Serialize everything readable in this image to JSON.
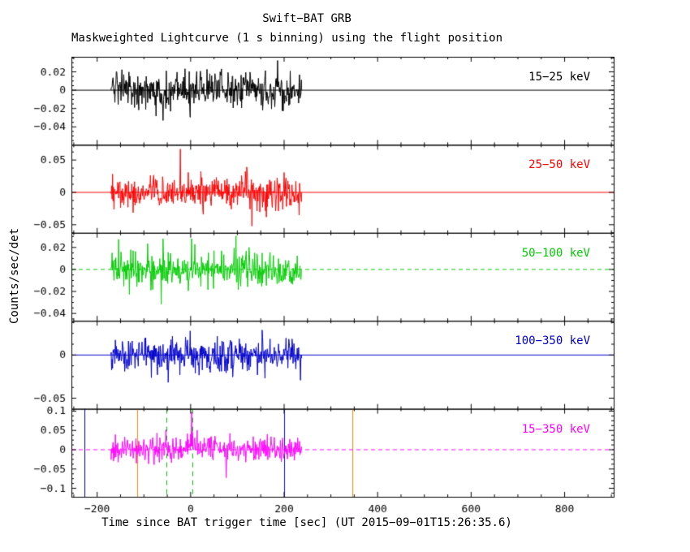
{
  "title": "Swift−BAT GRB",
  "subtitle": "Maskweighted Lightcurve (1 s binning) using the flight position",
  "xlabel": "Time since BAT trigger time [sec] (UT 2015−09−01T15:26:35.6)",
  "ylabel": "Counts/sec/det",
  "chart_data": {
    "type": "line",
    "title": "Swift−BAT GRB",
    "subtitle": "Maskweighted Lightcurve (1 s binning) using the flight position",
    "xlabel": "Time since BAT trigger time [sec] (UT 2015−09−01T15:26:35.6)",
    "ylabel": "Counts/sec/det",
    "xlim": [
      -255,
      905
    ],
    "xticks": [
      -200,
      0,
      200,
      400,
      600,
      800
    ],
    "x_minor_step": 50,
    "bin_sec": 1,
    "signal_window": [
      -170,
      237
    ],
    "grid": false,
    "legend_position": "in-panel-right",
    "panels": [
      {
        "label": "15−25 keV",
        "color": "#000000",
        "ylim": [
          -0.0596,
          0.0364
        ],
        "yticks": [
          0.02,
          0,
          -0.02,
          -0.04
        ],
        "sigma": 0.0105,
        "zero_line": "solid"
      },
      {
        "label": "25−50 keV",
        "color": "#ff0000",
        "ylim": [
          -0.0625,
          0.0735
        ],
        "yticks": [
          0.05,
          0,
          -0.05
        ],
        "sigma": 0.0125,
        "zero_line": "solid"
      },
      {
        "label": "50−100 keV",
        "color": "#00cc00",
        "ylim": [
          -0.0467,
          0.0333
        ],
        "yticks": [
          0.02,
          0,
          -0.02,
          -0.04
        ],
        "sigma": 0.0078,
        "zero_line": "dashed",
        "spike": {
          "t": 2,
          "v": 0.028
        }
      },
      {
        "label": "100−350 keV",
        "color": "#0000cc",
        "ylim": [
          -0.0623,
          0.0396
        ],
        "yticks": [
          0,
          -0.05
        ],
        "sigma": 0.01,
        "zero_line": "solid"
      },
      {
        "label": "15−350 keV",
        "color": "#ff00ff",
        "ylim": [
          -0.122,
          0.106
        ],
        "yticks": [
          0.1,
          0.05,
          0,
          -0.05,
          -0.1
        ],
        "sigma": 0.017,
        "zero_line": "dashed",
        "bump": {
          "t0": -5,
          "t1": 55,
          "v": 0.004
        },
        "spike": {
          "t": 2,
          "v": 0.098
        }
      }
    ],
    "event_lines": [
      {
        "t": -227,
        "color": "#000080",
        "style": "solid"
      },
      {
        "t": -115,
        "color": "#ff8800",
        "style": "solid"
      },
      {
        "t": -52,
        "color": "#00bb00",
        "style": "dashed"
      },
      {
        "t": 3,
        "color": "#00bb00",
        "style": "dashed"
      },
      {
        "t": 200,
        "color": "#0000ff",
        "style": "solid"
      },
      {
        "t": 345,
        "color": "#ff8800",
        "style": "solid"
      }
    ]
  }
}
